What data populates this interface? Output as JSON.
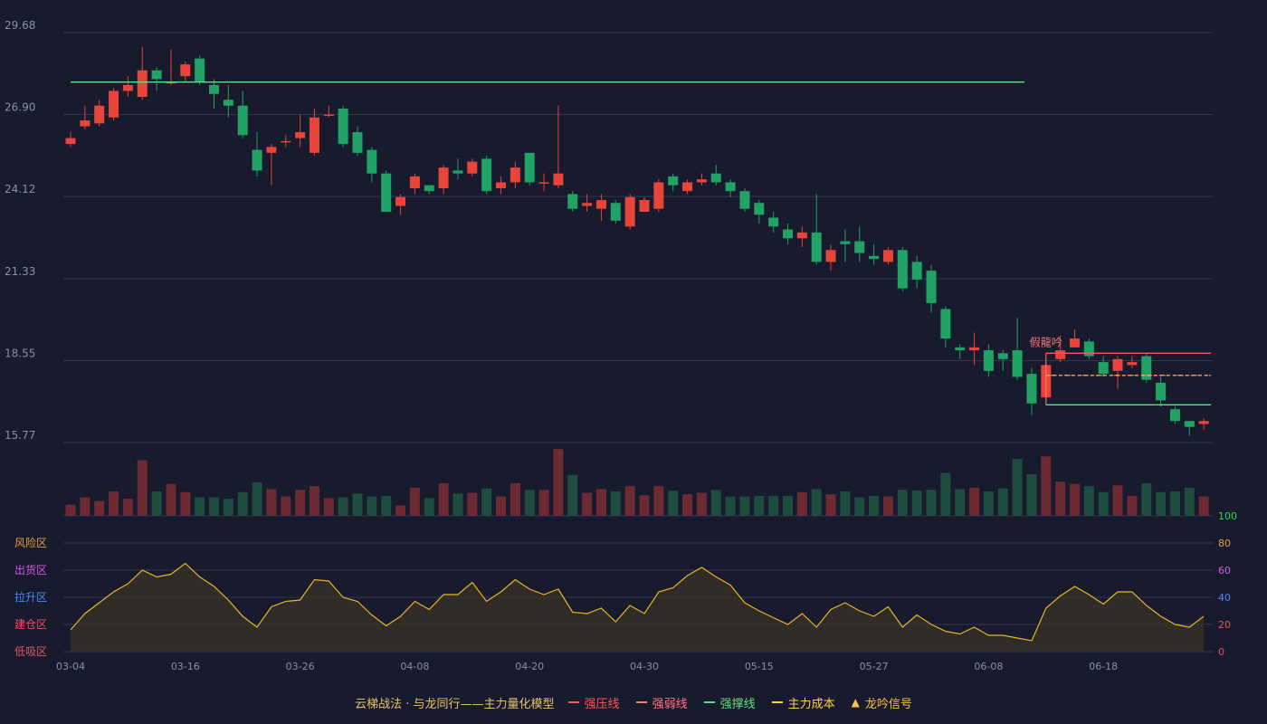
{
  "colors": {
    "background": "#181a2e",
    "up": "#e8443a",
    "down": "#21a366",
    "vol_up": "#6e2a33",
    "vol_down": "#1e4d3f",
    "grid": "#34374d",
    "pressure": "#ff5757",
    "weak": "#ff7b7b",
    "support": "#5ee27a",
    "cost": "#ffd23f",
    "signal": "#f6c343",
    "osc_line": "#e6b526",
    "osc_fill": "#3a3327",
    "axis_text": "#8a8fa3",
    "legend_title": "#e8c26a"
  },
  "chart_data": {
    "type": "candlestick",
    "price_ticks": [
      "29.68",
      "26.90",
      "24.12",
      "21.33",
      "18.55",
      "15.77"
    ],
    "price_range": [
      15.77,
      29.68
    ],
    "date_labels": [
      {
        "index": 0,
        "text": "03-04"
      },
      {
        "index": 8,
        "text": "03-16"
      },
      {
        "index": 16,
        "text": "03-26"
      },
      {
        "index": 24,
        "text": "04-08"
      },
      {
        "index": 32,
        "text": "04-20"
      },
      {
        "index": 40,
        "text": "04-30"
      },
      {
        "index": 48,
        "text": "05-15"
      },
      {
        "index": 56,
        "text": "05-27"
      },
      {
        "index": 64,
        "text": "06-08"
      },
      {
        "index": 72,
        "text": "06-18"
      }
    ],
    "ohlc": [
      [
        25.9,
        26.1,
        26.3,
        25.8
      ],
      [
        26.5,
        26.7,
        27.2,
        26.4
      ],
      [
        26.6,
        27.2,
        27.4,
        26.5
      ],
      [
        26.8,
        27.7,
        27.8,
        26.7
      ],
      [
        27.7,
        27.9,
        28.2,
        27.5
      ],
      [
        27.5,
        28.4,
        29.2,
        27.4
      ],
      [
        28.4,
        28.1,
        28.5,
        27.7
      ],
      [
        28.0,
        28.0,
        29.1,
        27.9
      ],
      [
        28.2,
        28.6,
        28.7,
        28.0
      ],
      [
        28.8,
        28.0,
        28.9,
        27.9
      ],
      [
        27.9,
        27.6,
        28.1,
        27.1
      ],
      [
        27.4,
        27.2,
        27.9,
        26.8
      ],
      [
        27.2,
        26.2,
        27.7,
        26.1
      ],
      [
        25.7,
        25.0,
        26.3,
        24.8
      ],
      [
        25.6,
        25.8,
        25.9,
        24.5
      ],
      [
        26.0,
        26.0,
        26.2,
        25.8
      ],
      [
        26.1,
        26.3,
        26.9,
        25.8
      ],
      [
        25.6,
        26.8,
        27.1,
        25.5
      ],
      [
        26.9,
        26.9,
        27.2,
        26.8
      ],
      [
        27.1,
        25.9,
        27.2,
        25.8
      ],
      [
        26.3,
        25.6,
        26.5,
        25.5
      ],
      [
        25.7,
        24.9,
        25.8,
        24.6
      ],
      [
        24.9,
        23.6,
        25.0,
        23.6
      ],
      [
        23.8,
        24.1,
        24.2,
        23.5
      ],
      [
        24.4,
        24.8,
        24.9,
        24.2
      ],
      [
        24.5,
        24.3,
        24.5,
        24.2
      ],
      [
        24.4,
        25.1,
        25.2,
        24.2
      ],
      [
        25.0,
        24.9,
        25.4,
        24.7
      ],
      [
        24.9,
        25.3,
        25.4,
        24.8
      ],
      [
        25.4,
        24.3,
        25.5,
        24.2
      ],
      [
        24.4,
        24.6,
        24.8,
        24.2
      ],
      [
        24.6,
        25.1,
        25.3,
        24.4
      ],
      [
        25.6,
        24.6,
        25.6,
        24.5
      ],
      [
        24.6,
        24.6,
        24.9,
        24.3
      ],
      [
        24.5,
        24.9,
        27.2,
        24.4
      ],
      [
        24.2,
        23.7,
        24.3,
        23.6
      ],
      [
        23.8,
        23.9,
        24.2,
        23.6
      ],
      [
        23.7,
        24.0,
        24.2,
        23.3
      ],
      [
        23.9,
        23.3,
        24.0,
        23.2
      ],
      [
        23.1,
        24.1,
        24.2,
        23.0
      ],
      [
        23.6,
        24.0,
        24.1,
        23.6
      ],
      [
        23.7,
        24.6,
        24.7,
        23.6
      ],
      [
        24.8,
        24.5,
        24.9,
        24.3
      ],
      [
        24.3,
        24.6,
        24.7,
        24.2
      ],
      [
        24.6,
        24.7,
        24.9,
        24.5
      ],
      [
        24.9,
        24.6,
        25.2,
        24.5
      ],
      [
        24.6,
        24.3,
        24.7,
        24.1
      ],
      [
        24.3,
        23.7,
        24.4,
        23.6
      ],
      [
        23.9,
        23.5,
        24.0,
        23.2
      ],
      [
        23.4,
        23.1,
        23.6,
        22.9
      ],
      [
        23.0,
        22.7,
        23.2,
        22.5
      ],
      [
        22.7,
        22.9,
        23.1,
        22.4
      ],
      [
        22.9,
        21.9,
        24.2,
        21.8
      ],
      [
        21.9,
        22.3,
        22.5,
        21.6
      ],
      [
        22.6,
        22.5,
        23.0,
        21.9
      ],
      [
        22.6,
        22.2,
        23.1,
        21.9
      ],
      [
        22.1,
        22.0,
        22.5,
        21.8
      ],
      [
        21.9,
        22.3,
        22.4,
        21.8
      ],
      [
        22.3,
        21.0,
        22.4,
        20.9
      ],
      [
        21.9,
        21.3,
        22.1,
        21.0
      ],
      [
        21.6,
        20.5,
        21.8,
        20.2
      ],
      [
        20.3,
        19.3,
        20.4,
        19.0
      ],
      [
        19.0,
        18.9,
        19.1,
        18.6
      ],
      [
        18.9,
        19.0,
        19.5,
        18.4
      ],
      [
        18.9,
        18.2,
        19.1,
        18.0
      ],
      [
        18.8,
        18.6,
        18.9,
        18.2
      ],
      [
        18.9,
        18.0,
        20.0,
        17.9
      ],
      [
        18.1,
        17.1,
        18.3,
        16.7
      ],
      [
        17.3,
        18.4,
        18.5,
        17.2
      ],
      [
        18.6,
        18.9,
        19.4,
        18.5
      ],
      [
        19.0,
        19.3,
        19.6,
        19.0
      ],
      [
        19.2,
        18.7,
        19.3,
        18.6
      ],
      [
        18.5,
        18.1,
        18.7,
        18.0
      ],
      [
        18.2,
        18.6,
        18.7,
        17.6
      ],
      [
        18.4,
        18.5,
        18.7,
        18.3
      ],
      [
        18.7,
        17.9,
        18.8,
        17.8
      ],
      [
        17.8,
        17.2,
        18.0,
        17.0
      ],
      [
        16.9,
        16.5,
        17.0,
        16.4
      ],
      [
        16.5,
        16.3,
        16.5,
        16.0
      ],
      [
        16.4,
        16.5,
        16.6,
        16.2
      ]
    ],
    "volume": [
      15,
      25,
      20,
      33,
      23,
      75,
      33,
      43,
      32,
      25,
      25,
      23,
      32,
      45,
      36,
      26,
      35,
      40,
      24,
      25,
      30,
      26,
      27,
      14,
      38,
      24,
      44,
      30,
      31,
      37,
      26,
      44,
      35,
      35,
      90,
      55,
      31,
      36,
      33,
      40,
      28,
      40,
      34,
      29,
      31,
      35,
      26,
      26,
      27,
      27,
      27,
      32,
      36,
      29,
      33,
      25,
      27,
      26,
      35,
      34,
      35,
      58,
      36,
      38,
      33,
      37,
      77,
      56,
      80,
      46,
      43,
      40,
      32,
      41,
      27,
      44,
      32,
      33,
      38,
      26
    ],
    "levels": {
      "upper_line": {
        "value": 28.0,
        "from": 0,
        "to": 66
      },
      "pressure": {
        "value": 18.8,
        "from": 68,
        "to": 79
      },
      "weak": {
        "value": 18.05,
        "from": 68,
        "to": 79
      },
      "cost": {
        "value": 18.05,
        "from": 68,
        "to": 79
      },
      "support": {
        "value": 17.05,
        "from": 68,
        "to": 79
      }
    },
    "signal": {
      "index": 68,
      "text": "假龍吟"
    },
    "oscillator": {
      "range": [
        0,
        100
      ],
      "ticks": [
        {
          "value": 100,
          "text": "100",
          "color": "#2bdb52"
        },
        {
          "value": 80,
          "text": "80",
          "color": "#e6a23c"
        },
        {
          "value": 60,
          "text": "60",
          "color": "#d05ce3"
        },
        {
          "value": 40,
          "text": "40",
          "color": "#4b8cf0"
        },
        {
          "value": 20,
          "text": "20",
          "color": "#e45561"
        },
        {
          "value": 0,
          "text": "0",
          "color": "#e45561"
        }
      ],
      "zones": [
        {
          "value": 80,
          "text": "风险区",
          "color": "#e6a23c"
        },
        {
          "value": 60,
          "text": "出货区",
          "color": "#d05ce3"
        },
        {
          "value": 40,
          "text": "拉升区",
          "color": "#4b8cf0"
        },
        {
          "value": 20,
          "text": "建仓区",
          "color": "#e45561"
        },
        {
          "value": 0,
          "text": "低吸区",
          "color": "#e45561"
        }
      ],
      "values": [
        16,
        28,
        36,
        44,
        50,
        60,
        55,
        57,
        65,
        55,
        48,
        38,
        26,
        18,
        33,
        37,
        38,
        53,
        52,
        40,
        37,
        27,
        19,
        26,
        37,
        31,
        42,
        42,
        51,
        37,
        44,
        53,
        46,
        42,
        46,
        29,
        28,
        32,
        22,
        34,
        28,
        44,
        47,
        56,
        62,
        55,
        49,
        36,
        30,
        25,
        20,
        28,
        18,
        31,
        36,
        30,
        26,
        33,
        18,
        27,
        20,
        15,
        13,
        18,
        12,
        12,
        10,
        8,
        32,
        41,
        48,
        42,
        35,
        44,
        44,
        34,
        26,
        20,
        18,
        26
      ]
    }
  },
  "legend": {
    "title": "云梯战法 · 与龙同行——主力量化模型",
    "items": [
      {
        "label": "强压线",
        "color": "#ff5757",
        "style": "solid"
      },
      {
        "label": "强弱线",
        "color": "#ff7b7b",
        "style": "dashed"
      },
      {
        "label": "强撑线",
        "color": "#5ee27a",
        "style": "solid"
      },
      {
        "label": "主力成本",
        "color": "#ffd23f",
        "style": "dashed"
      },
      {
        "label": "龙吟信号",
        "color": "#f6c343",
        "style": "triangle"
      }
    ]
  }
}
